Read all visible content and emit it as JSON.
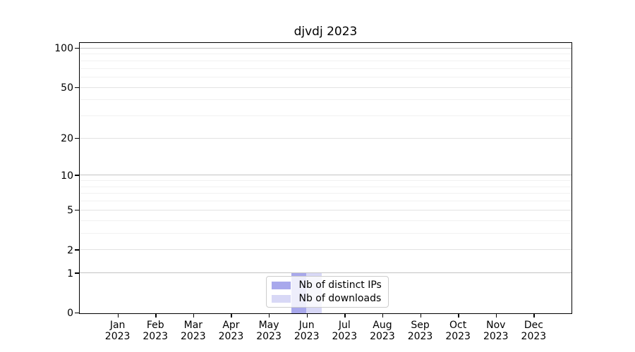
{
  "chart_data": {
    "type": "bar",
    "title": "djvdj 2023",
    "categories": [
      "Jan",
      "Feb",
      "Mar",
      "Apr",
      "May",
      "Jun",
      "Jul",
      "Aug",
      "Sep",
      "Oct",
      "Nov",
      "Dec"
    ],
    "x_tick_year": "2023",
    "series": [
      {
        "name": "Nb of distinct IPs",
        "color": "#a8a8ec",
        "values": [
          0,
          0,
          0,
          0,
          0,
          1,
          0,
          0,
          0,
          0,
          0,
          0
        ]
      },
      {
        "name": "Nb of downloads",
        "color": "#d8d8f6",
        "values": [
          0,
          0,
          0,
          0,
          0,
          1,
          0,
          0,
          0,
          0,
          0,
          0
        ]
      }
    ],
    "xlabel": "",
    "ylabel": "",
    "y_scale": "log1p",
    "ylim": [
      0,
      111
    ],
    "y_ticks": [
      0,
      1,
      2,
      5,
      10,
      20,
      50,
      100
    ],
    "y_decade_ticks": [
      1,
      10,
      100
    ],
    "y_minor_ticks": [
      3,
      4,
      6,
      7,
      8,
      9,
      30,
      40,
      60,
      70,
      80,
      90
    ],
    "grid": "on",
    "legend_position": "bottom-center",
    "colors": {
      "axis": "#000000",
      "grid_decade": "#c3c3c3",
      "grid_major": "#e2e2e2",
      "grid_minor": "#f1f1f1",
      "legend_border": "#cccccc"
    }
  }
}
